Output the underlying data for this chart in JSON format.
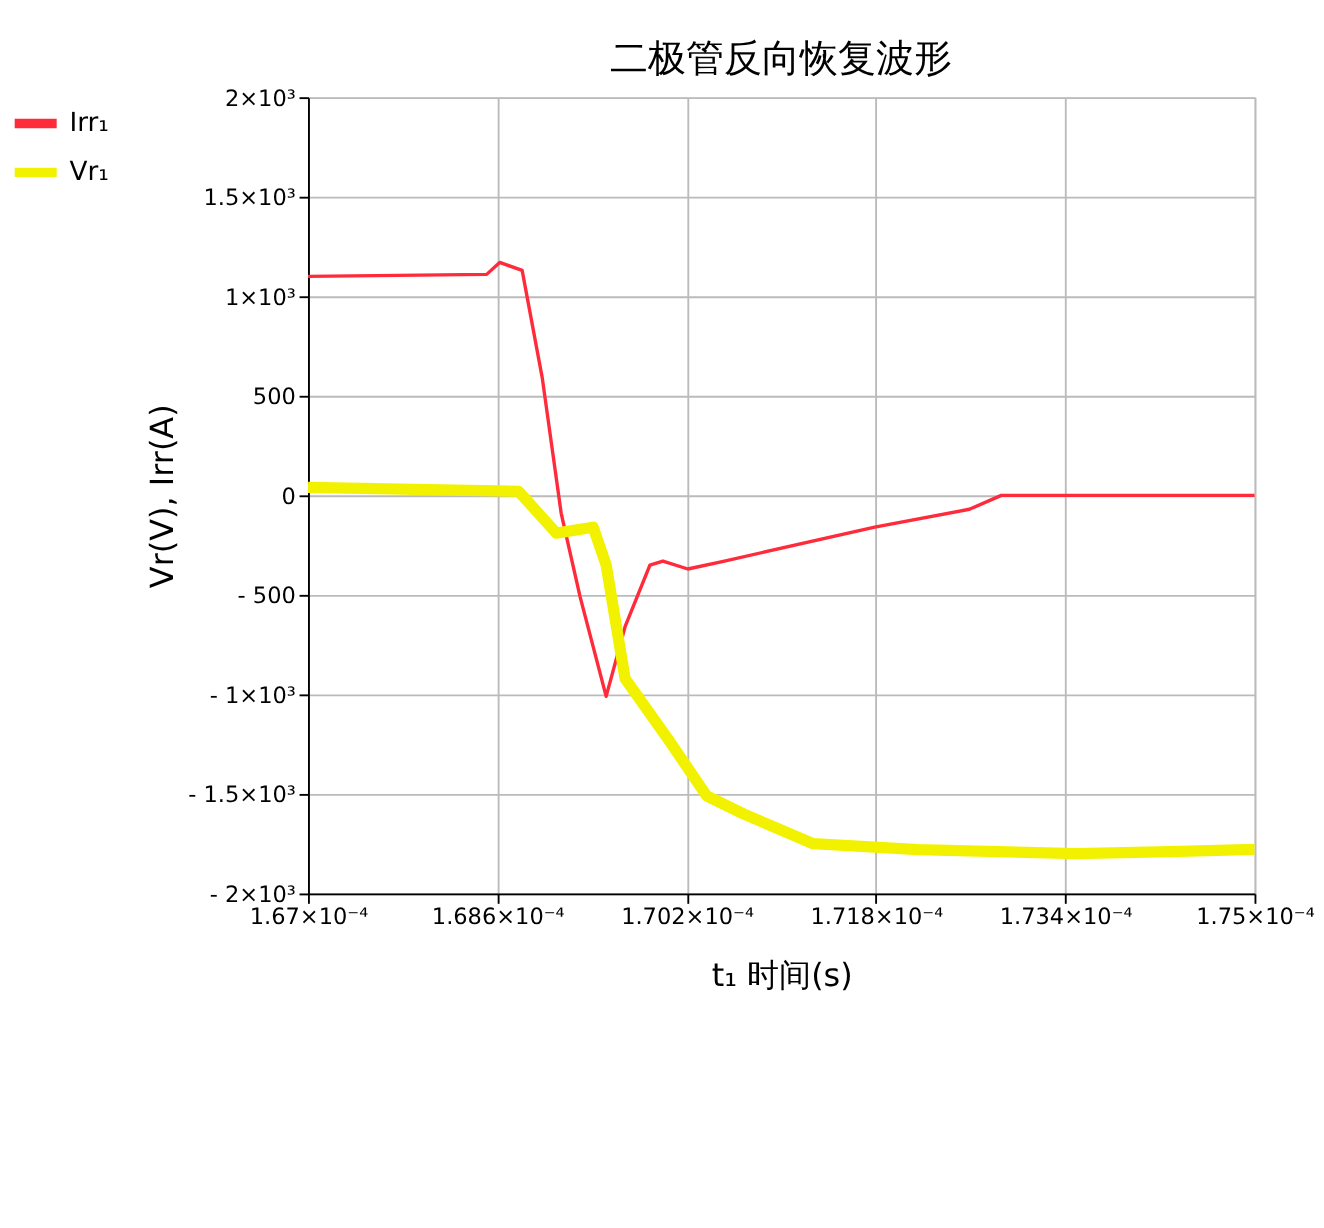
{
  "chart_data": {
    "type": "line",
    "title": "二极管反向恢复波形",
    "xlabel": "t₁  时间(s)",
    "ylabel": "Vr(V), Irr(A)",
    "xlim": [
      0.000167,
      0.000175
    ],
    "xticks": [
      {
        "value": 0.000167,
        "label": "1.67×10⁻⁴"
      },
      {
        "value": 0.0001686,
        "label": "1.686×10⁻⁴"
      },
      {
        "value": 0.0001702,
        "label": "1.702×10⁻⁴"
      },
      {
        "value": 0.0001718,
        "label": "1.718×10⁻⁴"
      },
      {
        "value": 0.0001734,
        "label": "1.734×10⁻⁴"
      },
      {
        "value": 0.000175,
        "label": "1.75×10⁻⁴"
      }
    ],
    "ylim": [
      -2000,
      2000
    ],
    "yticks": [
      {
        "value": -2000,
        "label": "- 2×10³"
      },
      {
        "value": -1500,
        "label": "- 1.5×10³"
      },
      {
        "value": -1000,
        "label": "- 1×10³"
      },
      {
        "value": -500,
        "label": "- 500"
      },
      0,
      500,
      {
        "value": 1000,
        "label": "1×10³"
      },
      {
        "value": 1500,
        "label": "1.5×10³"
      },
      {
        "value": 2000,
        "label": "2×10³"
      }
    ],
    "grid": true,
    "legend": "left",
    "line_style": "solid",
    "series": [
      {
        "name": "Irr₁",
        "color": "#ff2a3a",
        "x": [
          0.000167,
          0.00016851,
          0.00016862,
          0.00016881,
          0.00016898,
          0.00016914,
          0.0001693,
          0.00016952,
          0.00016968,
          0.00016989,
          0.00017,
          0.00017021,
          0.00017052,
          0.00017179,
          0.00017259,
          0.00017286,
          0.000175
        ],
        "values": [
          1100,
          1110,
          1170,
          1130,
          590,
          -90,
          -510,
          -1010,
          -660,
          -350,
          -330,
          -370,
          -330,
          -160,
          -70,
          0,
          0
        ]
      },
      {
        "name": "Vr₁",
        "color": "#f2f200",
        "x": [
          0.000167,
          0.00016878,
          0.0001691,
          0.00016941,
          0.00016952,
          0.00016968,
          0.00017005,
          0.00017037,
          0.00017068,
          0.00017127,
          0.00017216,
          0.00017349,
          0.00017429,
          0.00017492,
          0.000175
        ],
        "values": [
          40,
          20,
          -190,
          -160,
          -350,
          -920,
          -1230,
          -1510,
          -1600,
          -1750,
          -1780,
          -1800,
          -1790,
          -1780,
          -1780
        ]
      }
    ]
  }
}
